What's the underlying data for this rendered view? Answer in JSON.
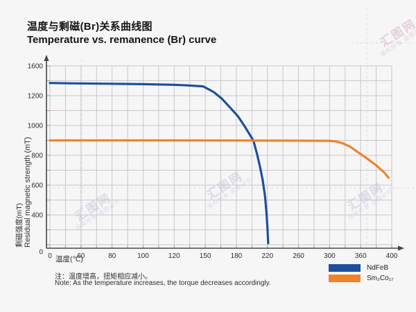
{
  "header": {
    "title_cn": "温度与剩磁(Br)关系曲线图",
    "title_en": "Temperature vs. remanence (Br) curve"
  },
  "chart_data": {
    "type": "line",
    "title": "Temperature vs. remanence (Br) curve",
    "x_axis": {
      "label": "温度(℃)",
      "ticks": [
        0,
        60,
        80,
        100,
        120,
        150,
        180,
        220,
        260,
        300,
        360,
        400
      ]
    },
    "y_axis": {
      "label_cn": "剩磁强度(mT)",
      "label_en": "Residual magnetic strength (mT)",
      "ticks": [
        1600,
        1200,
        1000,
        800,
        600,
        400,
        0
      ]
    },
    "grid": true,
    "legend_position": "bottom-right",
    "series": [
      {
        "name": "NdFeB",
        "color": "#1d4f9d",
        "points": [
          [
            0,
            1370
          ],
          [
            40,
            1366
          ],
          [
            80,
            1360
          ],
          [
            100,
            1354
          ],
          [
            120,
            1346
          ],
          [
            135,
            1337
          ],
          [
            148,
            1325
          ],
          [
            158,
            1250
          ],
          [
            166,
            1180
          ],
          [
            174,
            1120
          ],
          [
            182,
            1062
          ],
          [
            190,
            1000
          ],
          [
            196,
            950
          ],
          [
            202,
            897
          ],
          [
            207,
            800
          ],
          [
            211,
            710
          ],
          [
            214,
            630
          ],
          [
            217,
            520
          ],
          [
            219,
            400
          ],
          [
            220,
            250
          ],
          [
            221,
            60
          ]
        ]
      },
      {
        "name": "Sm₂Co₁₇",
        "color": "#f08329",
        "points": [
          [
            0,
            900
          ],
          [
            60,
            900
          ],
          [
            120,
            900
          ],
          [
            200,
            899
          ],
          [
            260,
            898
          ],
          [
            300,
            897
          ],
          [
            312,
            893
          ],
          [
            326,
            880
          ],
          [
            340,
            857
          ],
          [
            354,
            823
          ],
          [
            368,
            780
          ],
          [
            380,
            733
          ],
          [
            390,
            686
          ],
          [
            396,
            650
          ]
        ]
      }
    ]
  },
  "legend": {
    "items": [
      {
        "label": "NdFeB",
        "color": "#1d4f9d"
      },
      {
        "label": "Sm₂Co₁₇",
        "color": "#f08329"
      }
    ]
  },
  "notes": {
    "cn": "注：温度增高，扭矩相应减小。",
    "en": "Note: As the temperature increases, the torque decreases accordingly."
  },
  "watermark": {
    "brand": "汇图网",
    "notice": "版权所有 盗图必究"
  },
  "colors": {
    "ndfeb": "#1d4f9d",
    "sm2co17": "#f08329",
    "grid": "#c7c7ca",
    "axis": "#46464a",
    "background": "#f6f6f7"
  }
}
